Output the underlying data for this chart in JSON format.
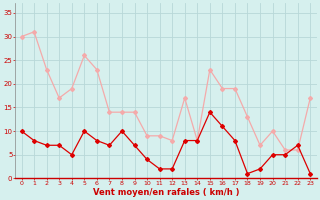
{
  "hours": [
    0,
    1,
    2,
    3,
    4,
    5,
    6,
    7,
    8,
    9,
    10,
    11,
    12,
    13,
    14,
    15,
    16,
    17,
    18,
    19,
    20,
    21,
    22,
    23
  ],
  "wind_avg": [
    10,
    8,
    7,
    7,
    5,
    10,
    8,
    7,
    10,
    7,
    4,
    2,
    2,
    8,
    8,
    14,
    11,
    8,
    1,
    2,
    5,
    5,
    7,
    1
  ],
  "wind_gust": [
    30,
    31,
    23,
    17,
    19,
    26,
    23,
    14,
    14,
    14,
    9,
    9,
    8,
    17,
    8,
    23,
    19,
    19,
    13,
    7,
    10,
    6,
    6,
    17
  ],
  "wind_avg_color": "#dd0000",
  "wind_gust_color": "#f4aaaa",
  "bg_color": "#d6f0ee",
  "grid_color": "#b8d8d8",
  "xlabel": "Vent moyen/en rafales ( km/h )",
  "xlabel_color": "#cc0000",
  "tick_color": "#cc0000",
  "ylim": [
    0,
    37
  ],
  "yticks": [
    0,
    5,
    10,
    15,
    20,
    25,
    30,
    35
  ],
  "xlim": [
    -0.5,
    23.5
  ],
  "left_spine_color": "#888888",
  "bottom_spine_color": "#cc0000"
}
